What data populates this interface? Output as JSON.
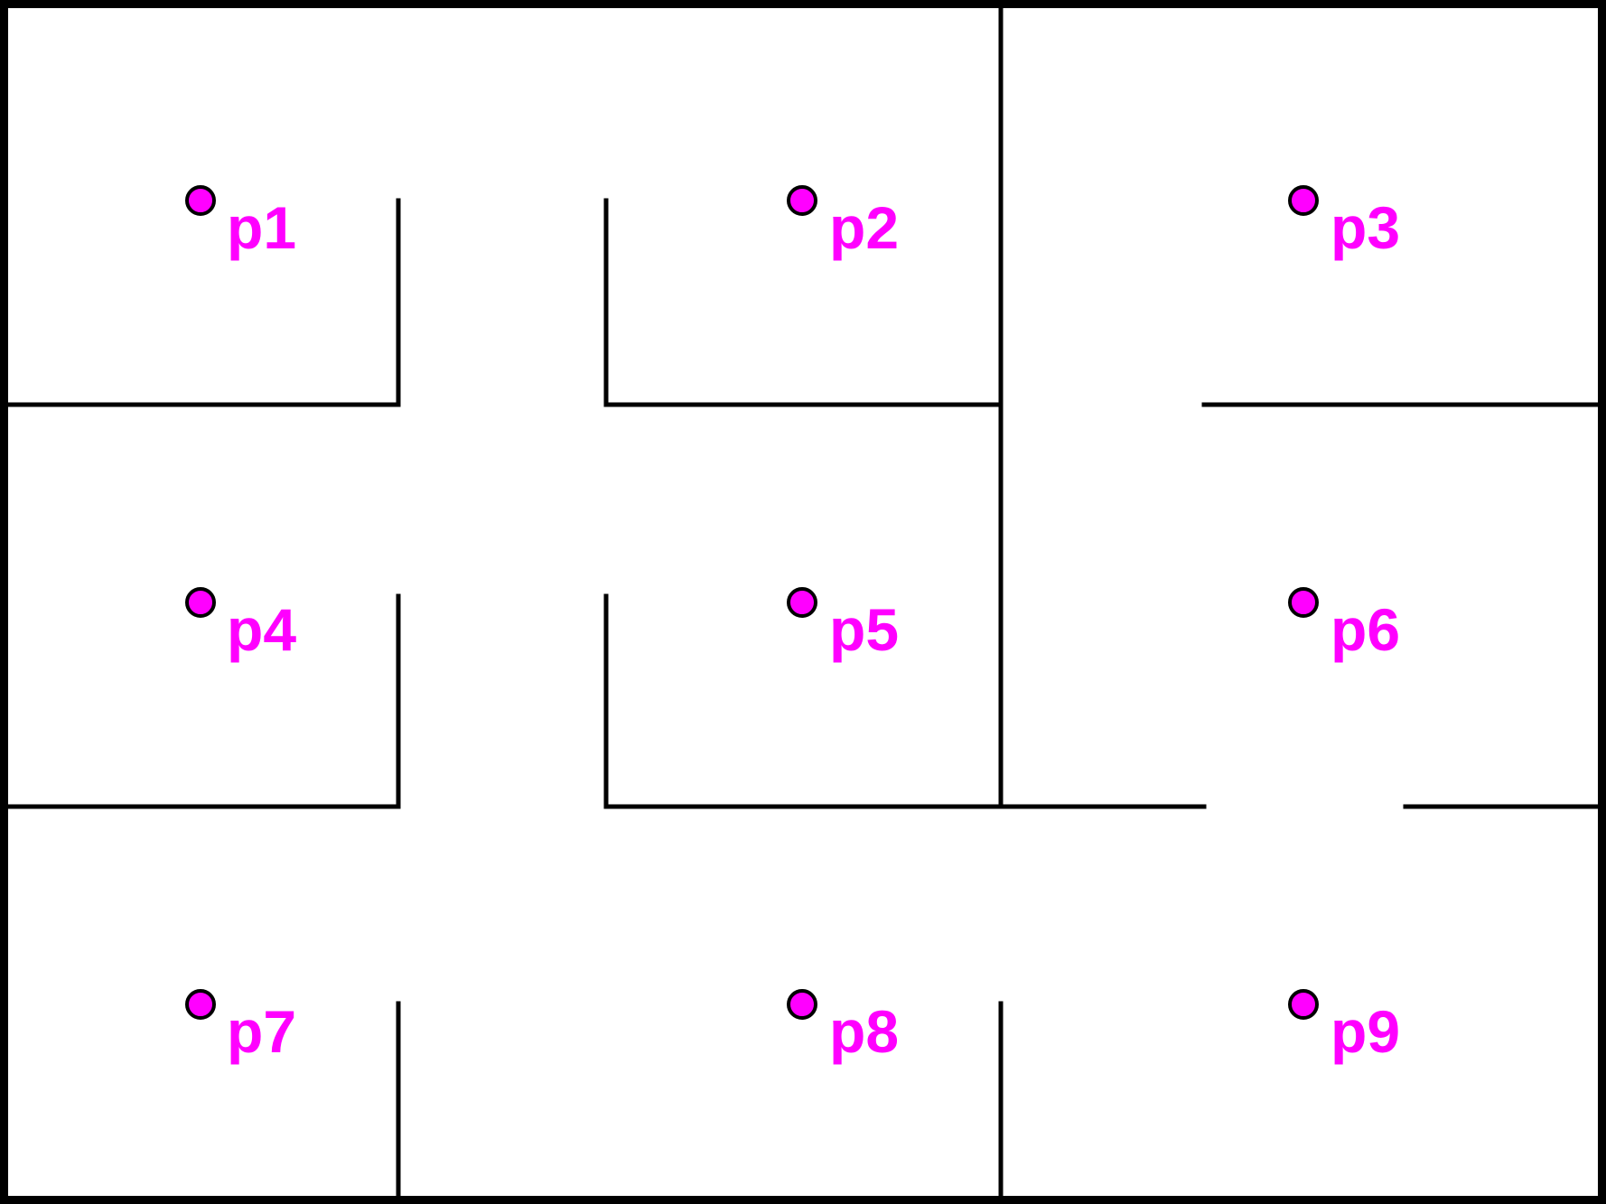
{
  "diagram": {
    "type": "floor-plan",
    "colors": {
      "wall": "#000000",
      "marker_fill": "#ff00ff",
      "marker_stroke": "#000000",
      "label": "#ff00ff",
      "background": "#ffffff"
    },
    "points": [
      {
        "id": "p1",
        "label": "p1"
      },
      {
        "id": "p2",
        "label": "p2"
      },
      {
        "id": "p3",
        "label": "p3"
      },
      {
        "id": "p4",
        "label": "p4"
      },
      {
        "id": "p5",
        "label": "p5"
      },
      {
        "id": "p6",
        "label": "p6"
      },
      {
        "id": "p7",
        "label": "p7"
      },
      {
        "id": "p8",
        "label": "p8"
      },
      {
        "id": "p9",
        "label": "p9"
      }
    ]
  }
}
